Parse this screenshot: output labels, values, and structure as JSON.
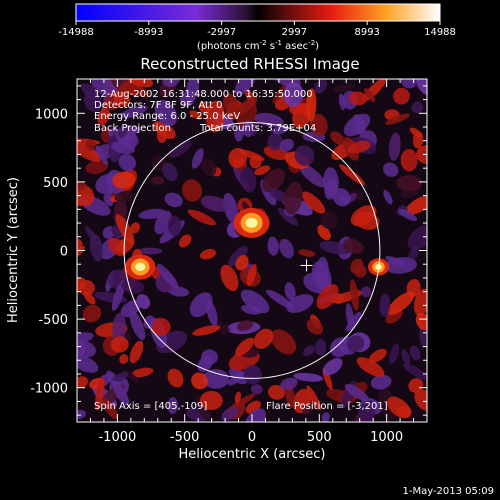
{
  "chart_data": {
    "type": "heatmap",
    "title": "Reconstructed RHESSI Image",
    "xlabel": "Heliocentric X (arcsec)",
    "ylabel": "Heliocentric Y (arcsec)",
    "xlim": [
      -1300,
      1300
    ],
    "ylim": [
      -1250,
      1250
    ],
    "x_ticks": [
      -1000,
      -500,
      0,
      500,
      1000
    ],
    "y_ticks": [
      -1000,
      -500,
      0,
      500,
      1000
    ],
    "colorbar": {
      "range": [
        -14988,
        14988
      ],
      "tick_labels": [
        "-14988",
        "-8993",
        "-2997",
        "2997",
        "8993",
        "14988"
      ],
      "unit_label_prefix": "(photons cm",
      "unit_sup1": "-2",
      "unit_mid": " s",
      "unit_sup2": "-1",
      "unit_mid2": " asec",
      "unit_sup3": "-2",
      "unit_suffix": ")"
    },
    "annotations": {
      "time_range": "12-Aug-2002 16:31:48.000 to 16:35:50.000",
      "detectors": "Detectors: 7F 8F 9F, Att 0",
      "energy_range": "Energy Range: 6.0 - 25.0 keV",
      "method": "Back Projection",
      "total_counts": "Total counts: 3.79E+04",
      "spin_axis": "Spin Axis = [405,-109]",
      "flare_position": "Flare Position = [-3,201]"
    },
    "solar_limb_radius_arcsec": 950,
    "spin_axis_marker": [
      405,
      -109
    ],
    "bright_sources": [
      {
        "x": -3,
        "y": 201,
        "intensity": 14988
      },
      {
        "x": -830,
        "y": -120,
        "intensity": 12000
      },
      {
        "x": 940,
        "y": -120,
        "intensity": 7000
      }
    ],
    "footer_date": "1-May-2013 05:09"
  }
}
